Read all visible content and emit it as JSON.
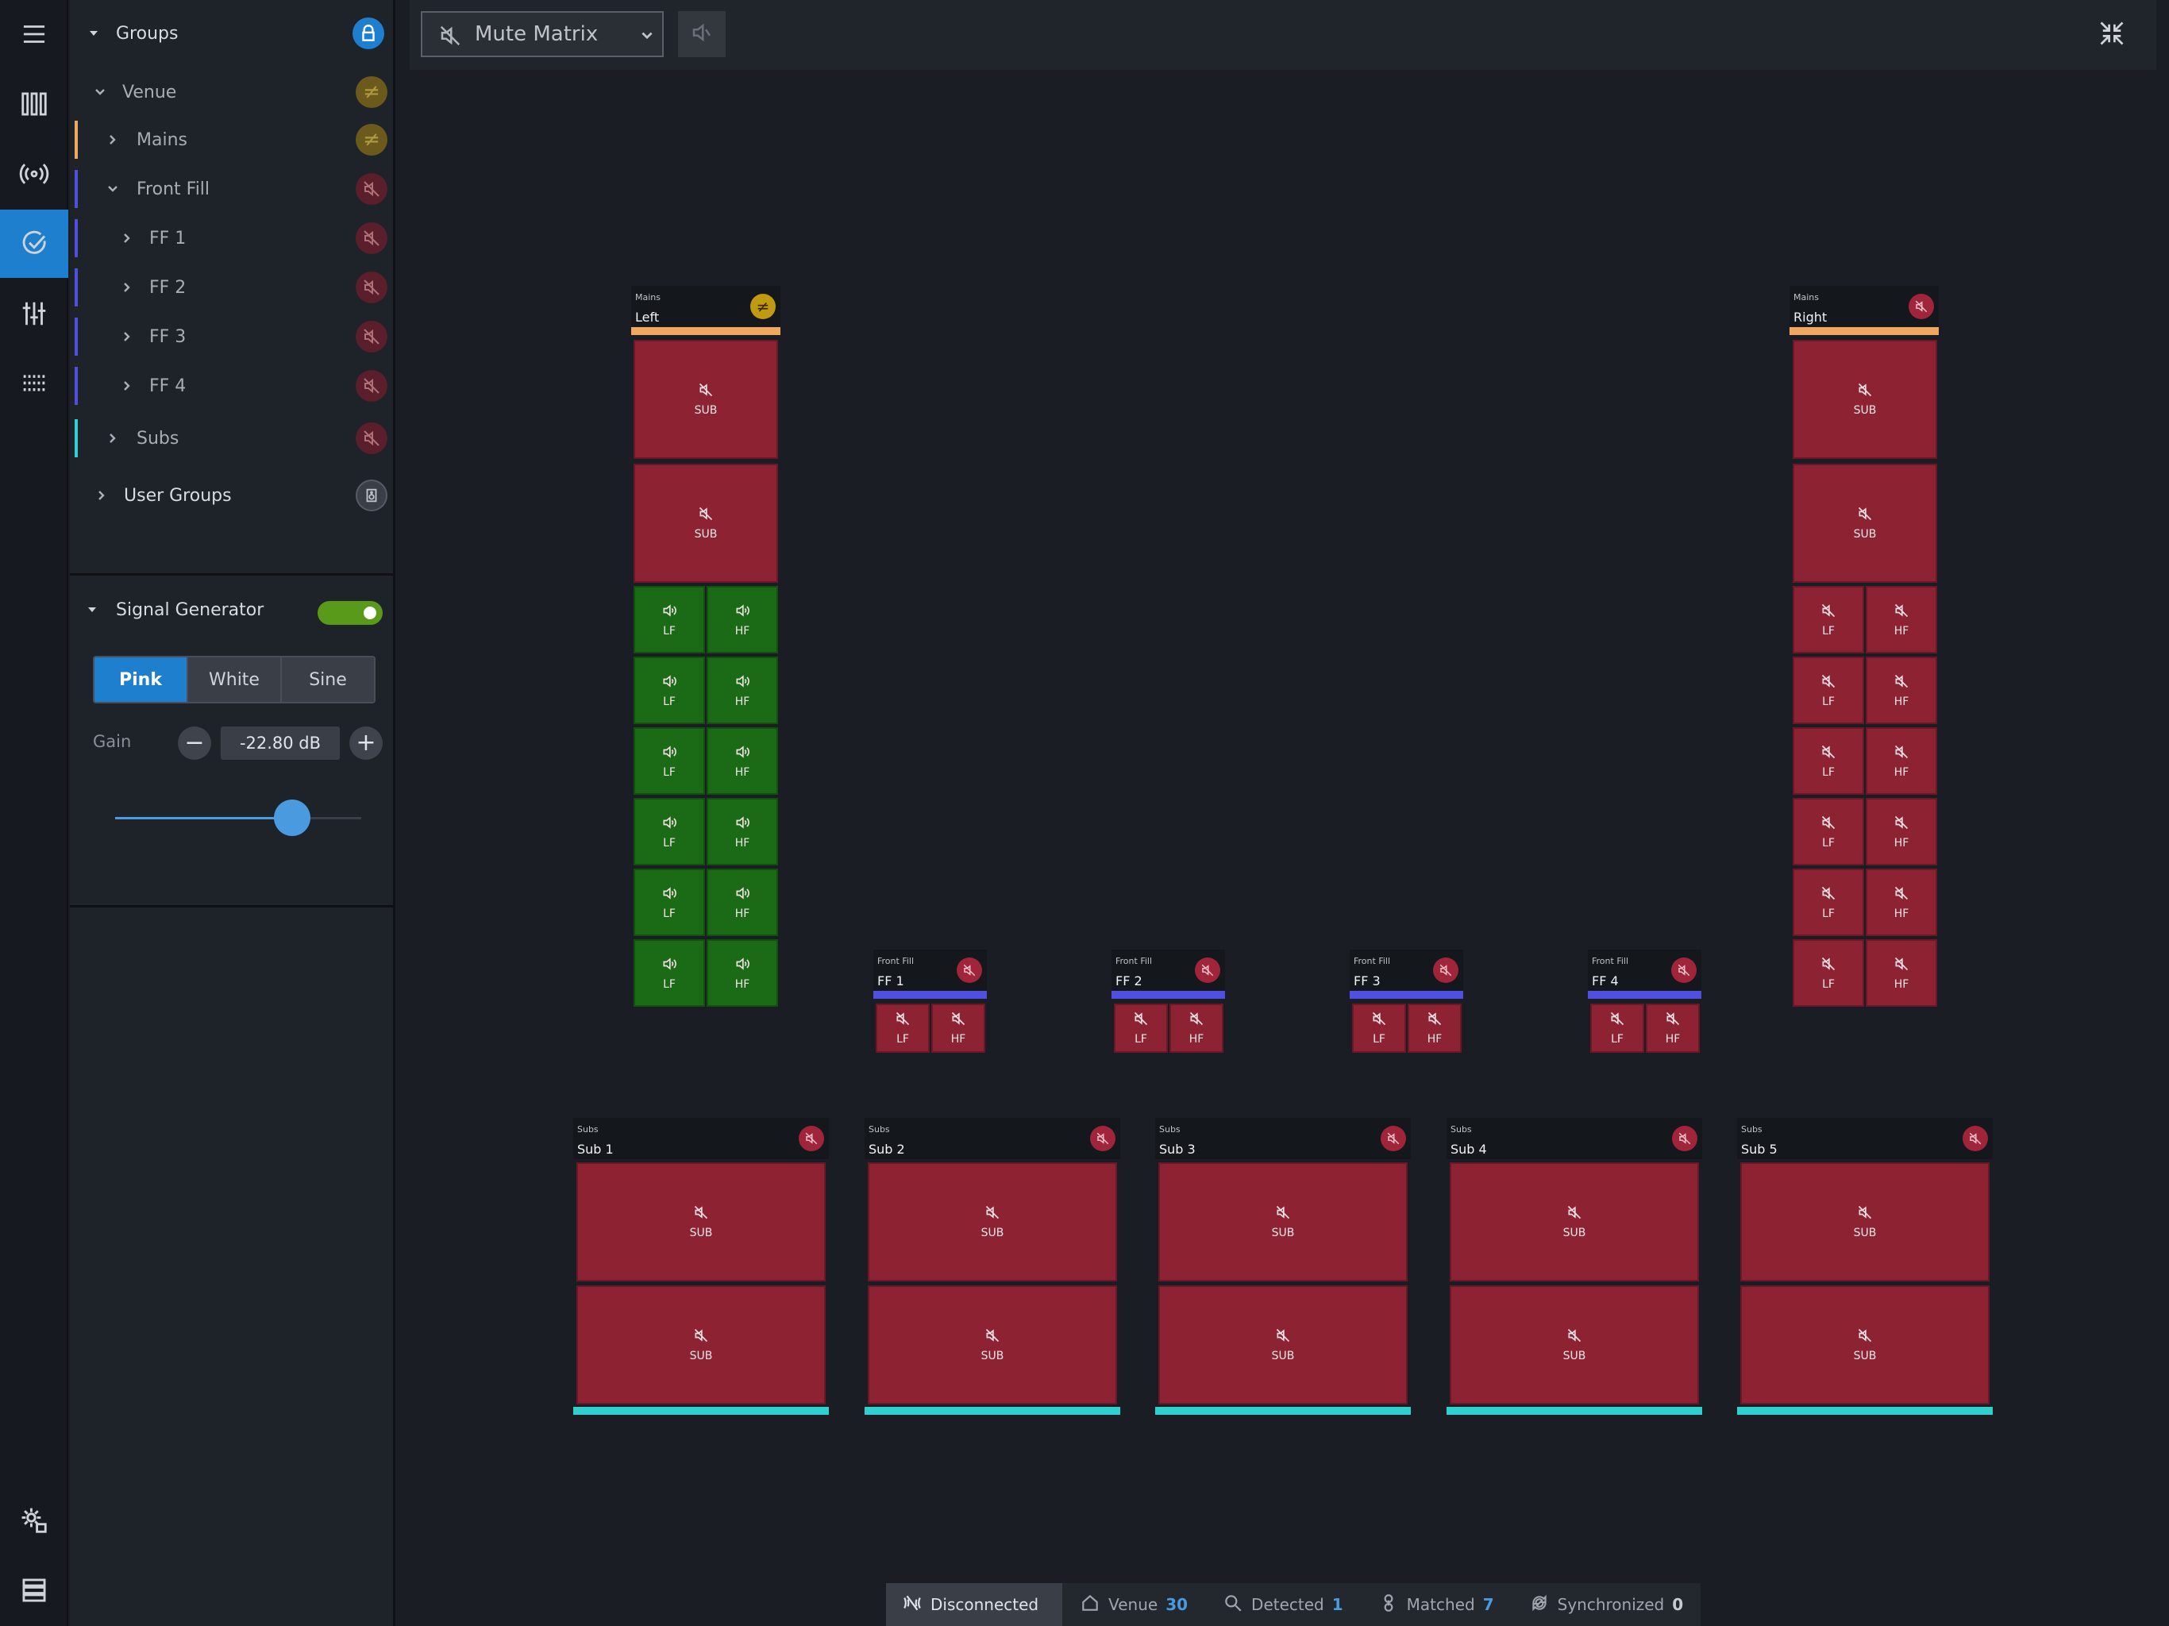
{
  "toolbar": {
    "view_label": "Mute Matrix"
  },
  "sidebar": {
    "groups_title": "Groups",
    "tree": [
      {
        "label": "Venue",
        "badge": "neq"
      },
      {
        "label": "Mains",
        "badge": "neq",
        "color": "#f0a860"
      },
      {
        "label": "Front Fill",
        "badge": "mute",
        "color": "#5050e0"
      },
      {
        "label": "FF 1",
        "badge": "mute",
        "color": "#5050e0"
      },
      {
        "label": "FF 2",
        "badge": "mute",
        "color": "#5050e0"
      },
      {
        "label": "FF 3",
        "badge": "mute",
        "color": "#5050e0"
      },
      {
        "label": "FF 4",
        "badge": "mute",
        "color": "#5050e0"
      },
      {
        "label": "Subs",
        "badge": "mute",
        "color": "#30d0d0"
      }
    ],
    "user_groups": "User Groups",
    "signal_generator": {
      "title": "Signal Generator",
      "enabled": true,
      "modes": [
        "Pink",
        "White",
        "Sine"
      ],
      "selected_mode": "Pink",
      "gain_label": "Gain",
      "gain_value": "-22.80 dB",
      "gain_fraction": 0.72
    }
  },
  "matrix": {
    "mains_left": {
      "category": "Mains",
      "name": "Left"
    },
    "mains_right": {
      "category": "Mains",
      "name": "Right"
    },
    "front_fills": [
      {
        "category": "Front Fill",
        "name": "FF 1"
      },
      {
        "category": "Front Fill",
        "name": "FF 2"
      },
      {
        "category": "Front Fill",
        "name": "FF 3"
      },
      {
        "category": "Front Fill",
        "name": "FF 4"
      }
    ],
    "subs": [
      {
        "category": "Subs",
        "name": "Sub 1"
      },
      {
        "category": "Subs",
        "name": "Sub 2"
      },
      {
        "category": "Subs",
        "name": "Sub 3"
      },
      {
        "category": "Subs",
        "name": "Sub 4"
      },
      {
        "category": "Subs",
        "name": "Sub 5"
      }
    ],
    "cabinet_labels": {
      "sub": "SUB",
      "lf": "LF",
      "hf": "HF"
    }
  },
  "colors": {
    "accent": "#1f7fcf",
    "muted": "#8d2233",
    "unmuted": "#1b6a16",
    "mains": "#f0a860",
    "front_fill": "#5050e0",
    "subs": "#30d0d0"
  },
  "status": {
    "connection": "Disconnected",
    "venue_label": "Venue",
    "venue_count": "30",
    "detected_label": "Detected",
    "detected_count": "1",
    "matched_label": "Matched",
    "matched_count": "7",
    "synchronized_label": "Synchronized",
    "synchronized_count": "0"
  }
}
